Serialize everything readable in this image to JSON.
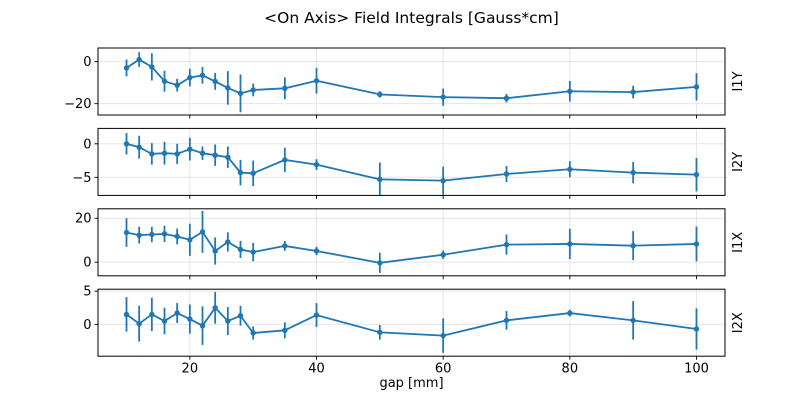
{
  "figure": {
    "title": "<On Axis> Field Integrals [Gauss*cm]",
    "xlabel": "gap [mm]"
  },
  "colors": {
    "line": "#1f77b4",
    "grid": "#e6e6e6",
    "spine": "#000000",
    "text": "#000000",
    "background": "#ffffff"
  },
  "chart_data": {
    "type": "line",
    "title": "<On Axis> Field Integrals [Gauss*cm]",
    "xlabel": "gap [mm]",
    "marker": "circle",
    "error_bars": true,
    "grid": true,
    "legend": "none",
    "x": [
      10,
      12,
      14,
      16,
      18,
      20,
      22,
      24,
      26,
      28,
      30,
      35,
      40,
      50,
      60,
      70,
      80,
      90,
      100
    ],
    "xlim": [
      5.5,
      104.5
    ],
    "xticks": [
      20,
      40,
      60,
      80,
      100
    ],
    "subplots": [
      {
        "ylabel": "I1Y",
        "yticks": [
          0,
          -20
        ],
        "ylim": [
          -25.4,
          6.5
        ],
        "values": [
          -3,
          1,
          -2.5,
          -9.3,
          -11.2,
          -7.6,
          -6.5,
          -9.4,
          -12.5,
          -15.1,
          -13.5,
          -12.7,
          -9.1,
          -15.6,
          -16.9,
          -17.4,
          -14.1,
          -14.5,
          -12
        ],
        "errors": [
          4,
          3.5,
          6.5,
          5,
          3,
          4.2,
          4,
          4,
          8,
          9,
          3,
          5.2,
          6.1,
          1.5,
          4.1,
          2,
          4.9,
          3,
          6.5
        ]
      },
      {
        "ylabel": "I2Y",
        "yticks": [
          0,
          -5
        ],
        "ylim": [
          -7.7,
          2.3
        ],
        "values": [
          0,
          -0.5,
          -1.5,
          -1.4,
          -1.5,
          -0.8,
          -1.4,
          -1.7,
          -2,
          -4.3,
          -4.4,
          -2.4,
          -3.1,
          -5.3,
          -5.5,
          -4.5,
          -3.8,
          -4.3,
          -4.6
        ],
        "errors": [
          1.6,
          1.7,
          1.6,
          1.7,
          1.5,
          1.7,
          1,
          1.6,
          1.6,
          1.9,
          1.9,
          1.8,
          0.8,
          2.5,
          2.1,
          1.2,
          1.2,
          1.6,
          2.5
        ]
      },
      {
        "ylabel": "I1X",
        "yticks": [
          20,
          0
        ],
        "ylim": [
          -6.2,
          24.3
        ],
        "values": [
          13.5,
          12.3,
          12.6,
          12.9,
          11.7,
          10.2,
          13.8,
          5.1,
          9.2,
          5.8,
          4.6,
          7.4,
          5.1,
          -0.3,
          3.4,
          8,
          8.3,
          7.5,
          8.3
        ],
        "errors": [
          6.5,
          3.8,
          3.5,
          3.7,
          3.6,
          7.3,
          9.5,
          6.2,
          4.4,
          3.9,
          4.2,
          2.2,
          1.9,
          4.6,
          1.9,
          4.6,
          6.9,
          6.6,
          7.9
        ]
      },
      {
        "ylabel": "I2X",
        "yticks": [
          5,
          0
        ],
        "ylim": [
          -4.8,
          5.3
        ],
        "values": [
          1.5,
          0.1,
          1.5,
          0.5,
          1.7,
          0.8,
          -0.2,
          2.5,
          0.5,
          1.3,
          -1.3,
          -0.9,
          1.4,
          -1.2,
          -1.7,
          0.6,
          1.7,
          0.6,
          -0.7
        ],
        "errors": [
          2.6,
          2.7,
          2.5,
          2,
          1.5,
          2.2,
          2.9,
          2.4,
          2.1,
          1.5,
          1,
          1.2,
          1.8,
          1.1,
          2.6,
          1.4,
          0.5,
          2.9,
          3.1
        ]
      }
    ]
  }
}
